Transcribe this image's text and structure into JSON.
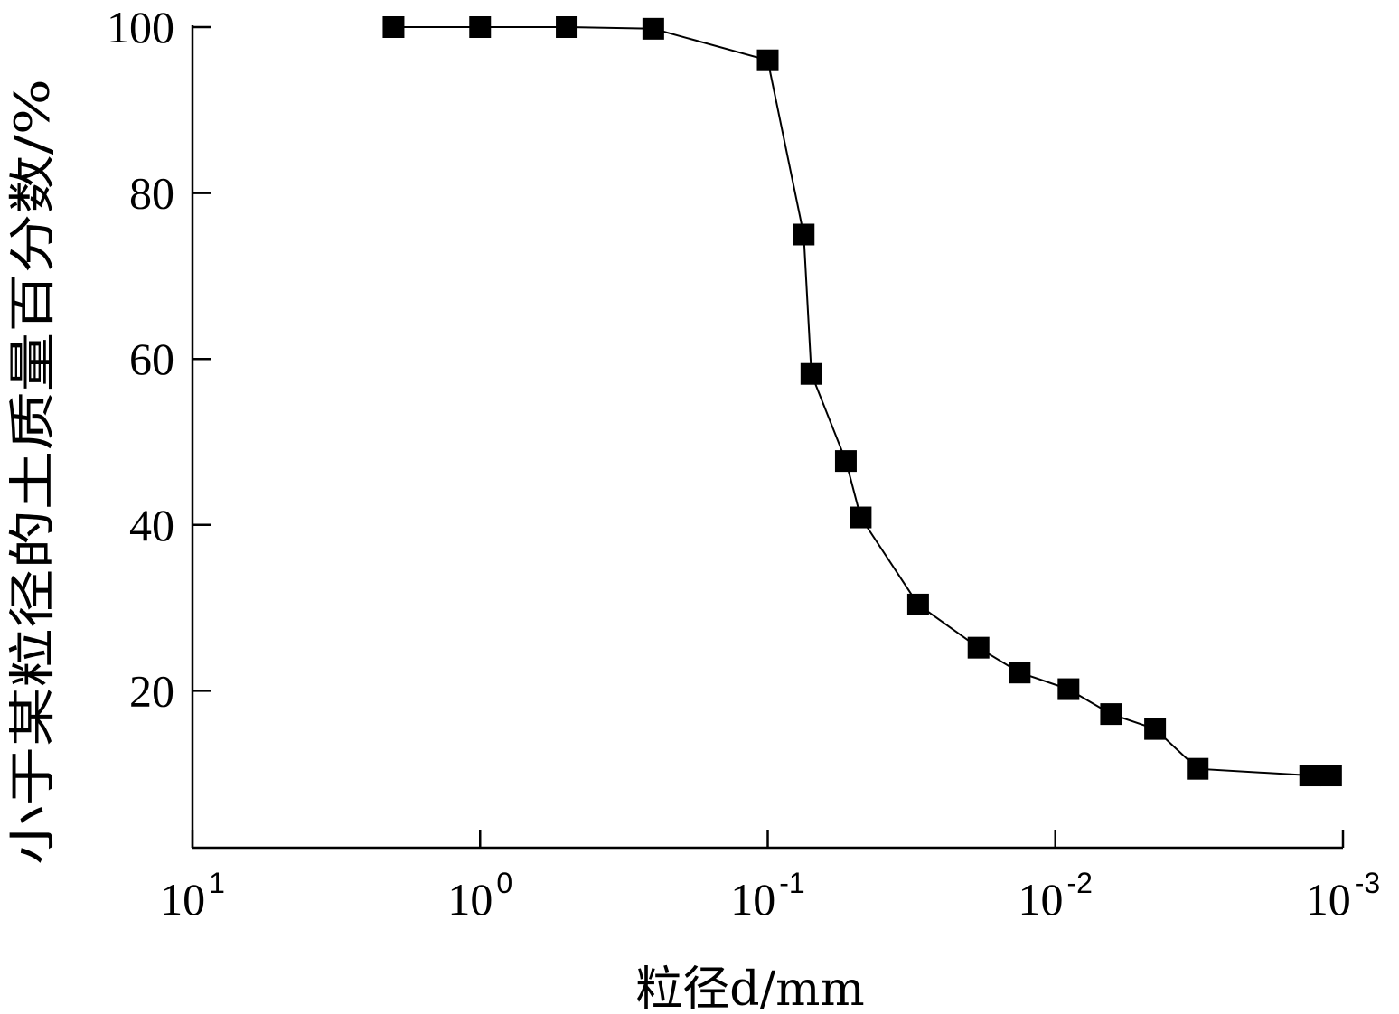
{
  "chart_data": {
    "type": "line",
    "xlabel": "粒径d/mm",
    "ylabel": "小于某粒径的土质量百分数/%",
    "x_scale": "log",
    "x_reversed": true,
    "xlim": [
      10,
      0.001
    ],
    "ylim": [
      0,
      100
    ],
    "x_ticks": [
      {
        "value": 10,
        "base": "10",
        "exp": "1"
      },
      {
        "value": 1,
        "base": "10",
        "exp": "0"
      },
      {
        "value": 0.1,
        "base": "10",
        "exp": "-1"
      },
      {
        "value": 0.01,
        "base": "10",
        "exp": "-2"
      },
      {
        "value": 0.001,
        "base": "10",
        "exp": "-3"
      }
    ],
    "y_ticks": [
      "100",
      "80",
      "60",
      "40",
      "20"
    ],
    "y_tick_values": [
      100,
      80,
      60,
      40,
      20
    ],
    "grid": false,
    "line_color": "#000000",
    "marker": "square",
    "series": [
      {
        "x": [
          2,
          1,
          0.5,
          0.25,
          0.1,
          0.075,
          0.0705,
          0.0535,
          0.0475,
          0.03,
          0.0185,
          0.0133,
          0.009,
          0.0064,
          0.0045,
          0.0032,
          0.0013,
          0.0011
        ],
        "y": [
          100,
          100,
          100,
          99.8,
          96,
          75,
          58.2,
          47.7,
          40.9,
          30.4,
          25.2,
          22.2,
          20.2,
          17.2,
          15.4,
          10.6,
          9.8,
          9.8
        ]
      }
    ]
  }
}
